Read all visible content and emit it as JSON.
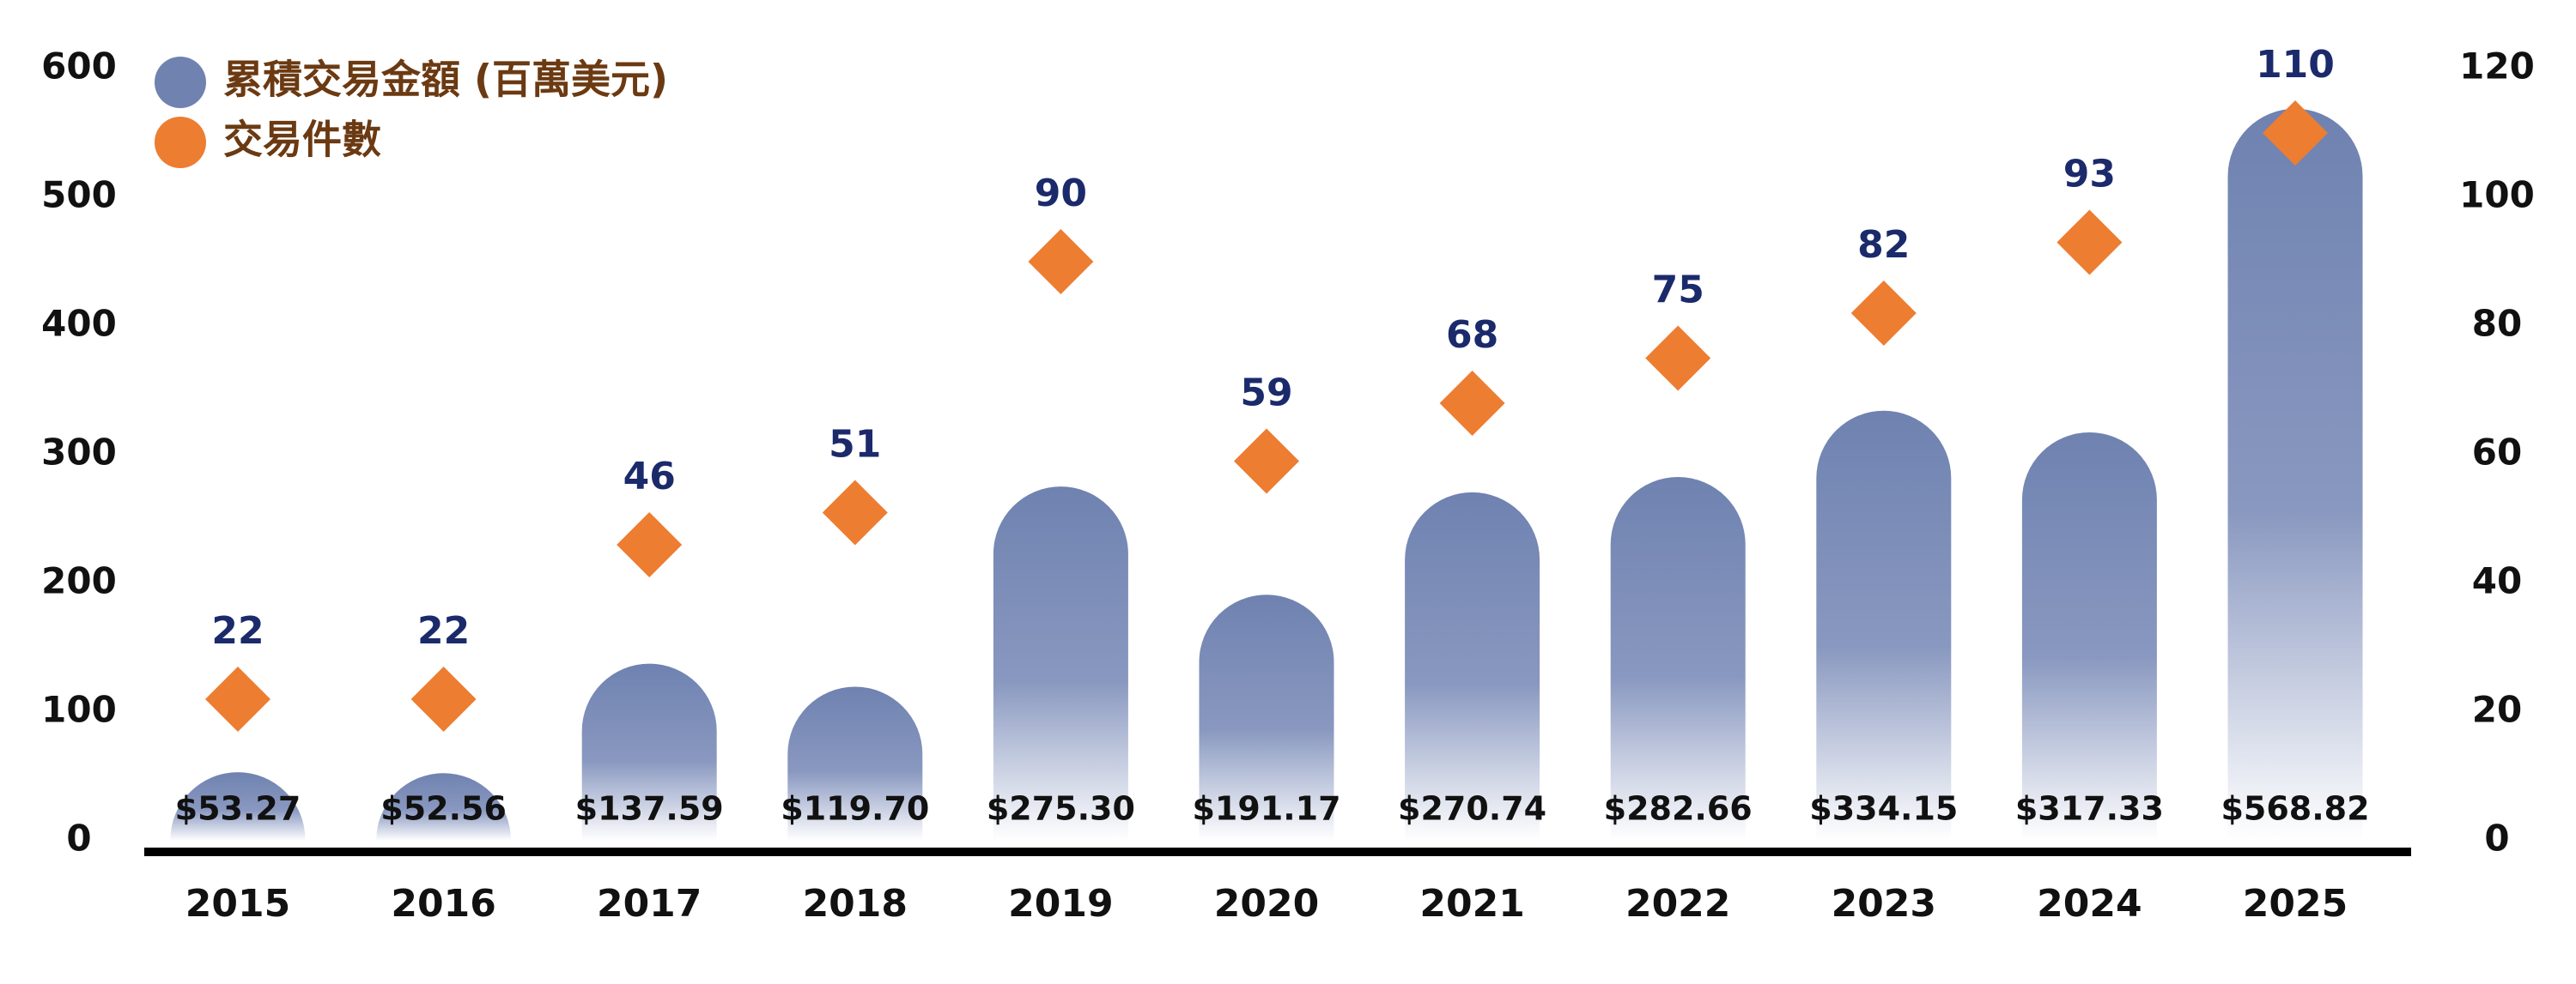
{
  "chart_data": {
    "type": "bar-diamond",
    "categories": [
      "2015",
      "2016",
      "2017",
      "2018",
      "2019",
      "2020",
      "2021",
      "2022",
      "2023",
      "2024",
      "2025"
    ],
    "series": [
      {
        "name": "累積交易金額 (百萬美元)",
        "color": "#6f82b0",
        "type": "bar",
        "values": [
          53.27,
          52.56,
          137.59,
          119.7,
          275.3,
          191.17,
          270.74,
          282.66,
          334.15,
          317.33,
          568.82
        ],
        "value_labels": [
          "$53.27",
          "$52.56",
          "$137.59",
          "$119.70",
          "$275.30",
          "$191.17",
          "$270.74",
          "$282.66",
          "$334.15",
          "$317.33",
          "$568.82"
        ]
      },
      {
        "name": "交易件數",
        "color": "#ed7d31",
        "type": "diamond",
        "axis": "y2",
        "values": [
          22,
          22,
          46,
          51,
          90,
          59,
          68,
          75,
          82,
          93,
          110
        ]
      }
    ],
    "ylim": [
      0,
      600
    ],
    "yticks": [
      0,
      100,
      200,
      300,
      400,
      500,
      600
    ],
    "y2lim": [
      0,
      120
    ],
    "y2ticks": [
      0,
      20,
      40,
      60,
      80,
      100,
      120
    ]
  }
}
